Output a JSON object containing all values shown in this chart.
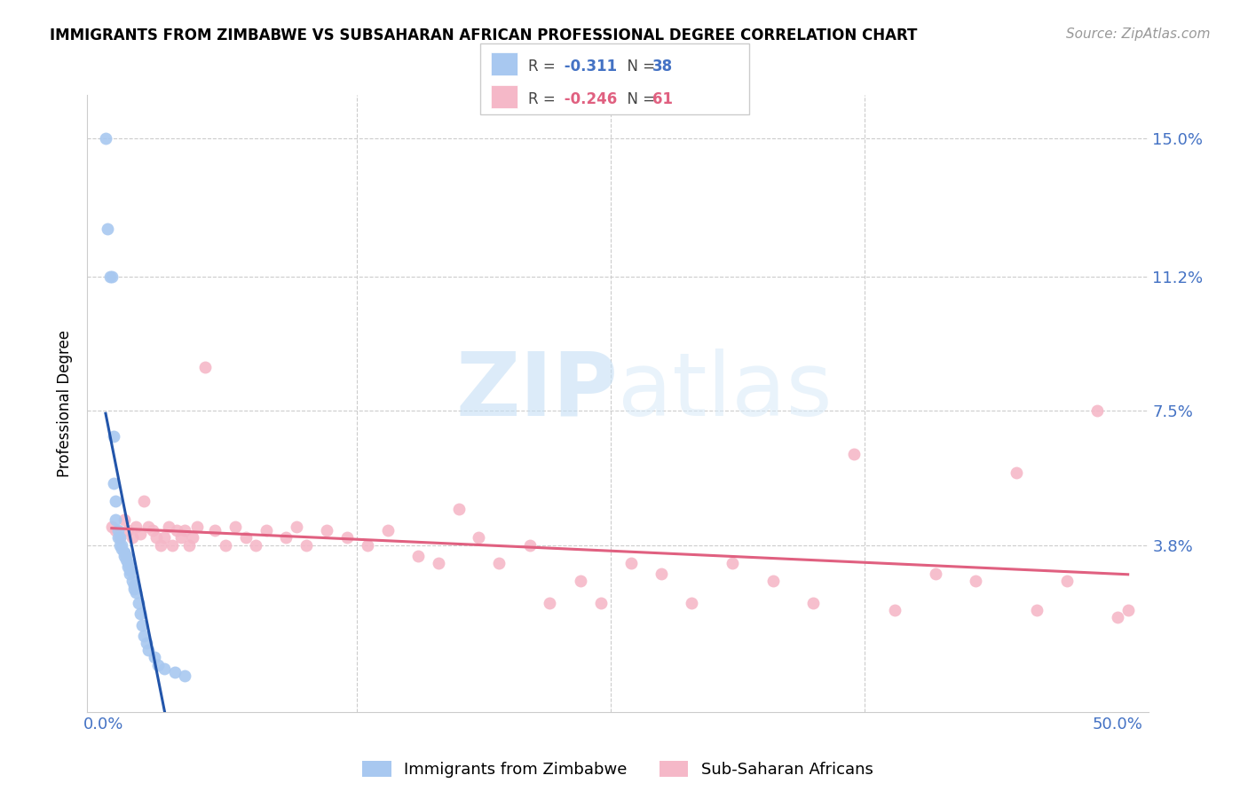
{
  "title": "IMMIGRANTS FROM ZIMBABWE VS SUBSAHARAN AFRICAN PROFESSIONAL DEGREE CORRELATION CHART",
  "source": "Source: ZipAtlas.com",
  "ylabel": "Professional Degree",
  "ytick_vals": [
    0.0,
    0.038,
    0.075,
    0.112,
    0.15
  ],
  "ytick_labels": [
    "",
    "3.8%",
    "7.5%",
    "11.2%",
    "15.0%"
  ],
  "xtick_vals": [
    0.0,
    0.125,
    0.25,
    0.375,
    0.5
  ],
  "xtick_labels": [
    "0.0%",
    "",
    "",
    "",
    "50.0%"
  ],
  "xlim": [
    -0.008,
    0.515
  ],
  "ylim": [
    -0.008,
    0.162
  ],
  "watermark_line1": "ZIP",
  "watermark_line2": "atlas",
  "blue_color": "#A8C8F0",
  "blue_line_color": "#2255AA",
  "pink_color": "#F5B8C8",
  "pink_line_color": "#E06080",
  "grid_color": "#CCCCCC",
  "r1_val": "-0.311",
  "n1_val": "38",
  "r2_val": "-0.246",
  "n2_val": "61",
  "zimbabwe_x": [
    0.001,
    0.002,
    0.003,
    0.004,
    0.005,
    0.005,
    0.006,
    0.006,
    0.007,
    0.007,
    0.008,
    0.008,
    0.009,
    0.009,
    0.01,
    0.01,
    0.01,
    0.011,
    0.011,
    0.012,
    0.012,
    0.013,
    0.013,
    0.014,
    0.015,
    0.015,
    0.016,
    0.017,
    0.018,
    0.019,
    0.02,
    0.021,
    0.022,
    0.025,
    0.027,
    0.03,
    0.035,
    0.04
  ],
  "zimbabwe_y": [
    0.15,
    0.125,
    0.112,
    0.112,
    0.068,
    0.055,
    0.05,
    0.045,
    0.042,
    0.04,
    0.04,
    0.038,
    0.038,
    0.037,
    0.036,
    0.036,
    0.035,
    0.035,
    0.034,
    0.033,
    0.032,
    0.031,
    0.03,
    0.028,
    0.027,
    0.026,
    0.025,
    0.022,
    0.019,
    0.016,
    0.013,
    0.011,
    0.009,
    0.007,
    0.005,
    0.004,
    0.003,
    0.002
  ],
  "subsaharan_x": [
    0.004,
    0.006,
    0.008,
    0.01,
    0.012,
    0.014,
    0.016,
    0.018,
    0.02,
    0.022,
    0.024,
    0.026,
    0.028,
    0.03,
    0.032,
    0.034,
    0.036,
    0.038,
    0.04,
    0.042,
    0.044,
    0.046,
    0.05,
    0.055,
    0.06,
    0.065,
    0.07,
    0.075,
    0.08,
    0.09,
    0.095,
    0.1,
    0.11,
    0.12,
    0.13,
    0.14,
    0.155,
    0.165,
    0.175,
    0.185,
    0.195,
    0.21,
    0.22,
    0.235,
    0.245,
    0.26,
    0.275,
    0.29,
    0.31,
    0.33,
    0.35,
    0.37,
    0.39,
    0.41,
    0.43,
    0.45,
    0.46,
    0.475,
    0.49,
    0.5,
    0.505
  ],
  "subsaharan_y": [
    0.043,
    0.042,
    0.04,
    0.045,
    0.042,
    0.04,
    0.043,
    0.041,
    0.05,
    0.043,
    0.042,
    0.04,
    0.038,
    0.04,
    0.043,
    0.038,
    0.042,
    0.04,
    0.042,
    0.038,
    0.04,
    0.043,
    0.087,
    0.042,
    0.038,
    0.043,
    0.04,
    0.038,
    0.042,
    0.04,
    0.043,
    0.038,
    0.042,
    0.04,
    0.038,
    0.042,
    0.035,
    0.033,
    0.048,
    0.04,
    0.033,
    0.038,
    0.022,
    0.028,
    0.022,
    0.033,
    0.03,
    0.022,
    0.033,
    0.028,
    0.022,
    0.063,
    0.02,
    0.03,
    0.028,
    0.058,
    0.02,
    0.028,
    0.075,
    0.018,
    0.02
  ]
}
